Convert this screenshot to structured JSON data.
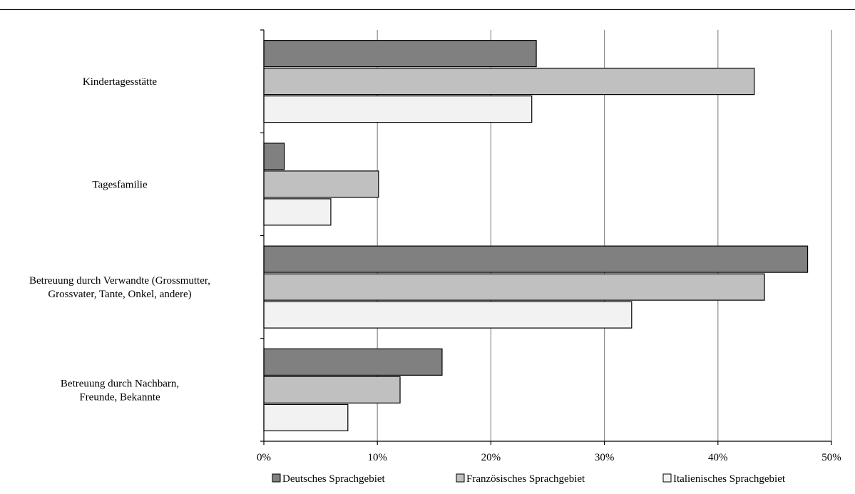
{
  "header_fragment": "...",
  "chart_data": {
    "type": "bar",
    "orientation": "horizontal",
    "categories": [
      [
        "Kindertagesstätte"
      ],
      [
        "Tagesfamilie"
      ],
      [
        "Betreuung durch Verwandte (Grossmutter,",
        "Grossvater, Tante, Onkel, andere)"
      ],
      [
        "Betreuung durch Nachbarn,",
        "Freunde, Bekannte"
      ]
    ],
    "series": [
      {
        "name": "Deutsches Sprachgebiet",
        "color": "#808080",
        "values": [
          24.0,
          1.8,
          47.9,
          15.7
        ]
      },
      {
        "name": "Französisches Sprachgebiet",
        "color": "#c0c0c0",
        "values": [
          43.2,
          10.1,
          44.1,
          12.0
        ]
      },
      {
        "name": "Italienisches Sprachgebiet",
        "color": "#f2f2f2",
        "values": [
          23.6,
          5.9,
          32.4,
          7.4
        ]
      }
    ],
    "x_ticks": [
      "0%",
      "10%",
      "20%",
      "30%",
      "40%",
      "50%"
    ],
    "xlim": [
      0,
      50
    ],
    "grid": true,
    "legend_position": "bottom"
  }
}
